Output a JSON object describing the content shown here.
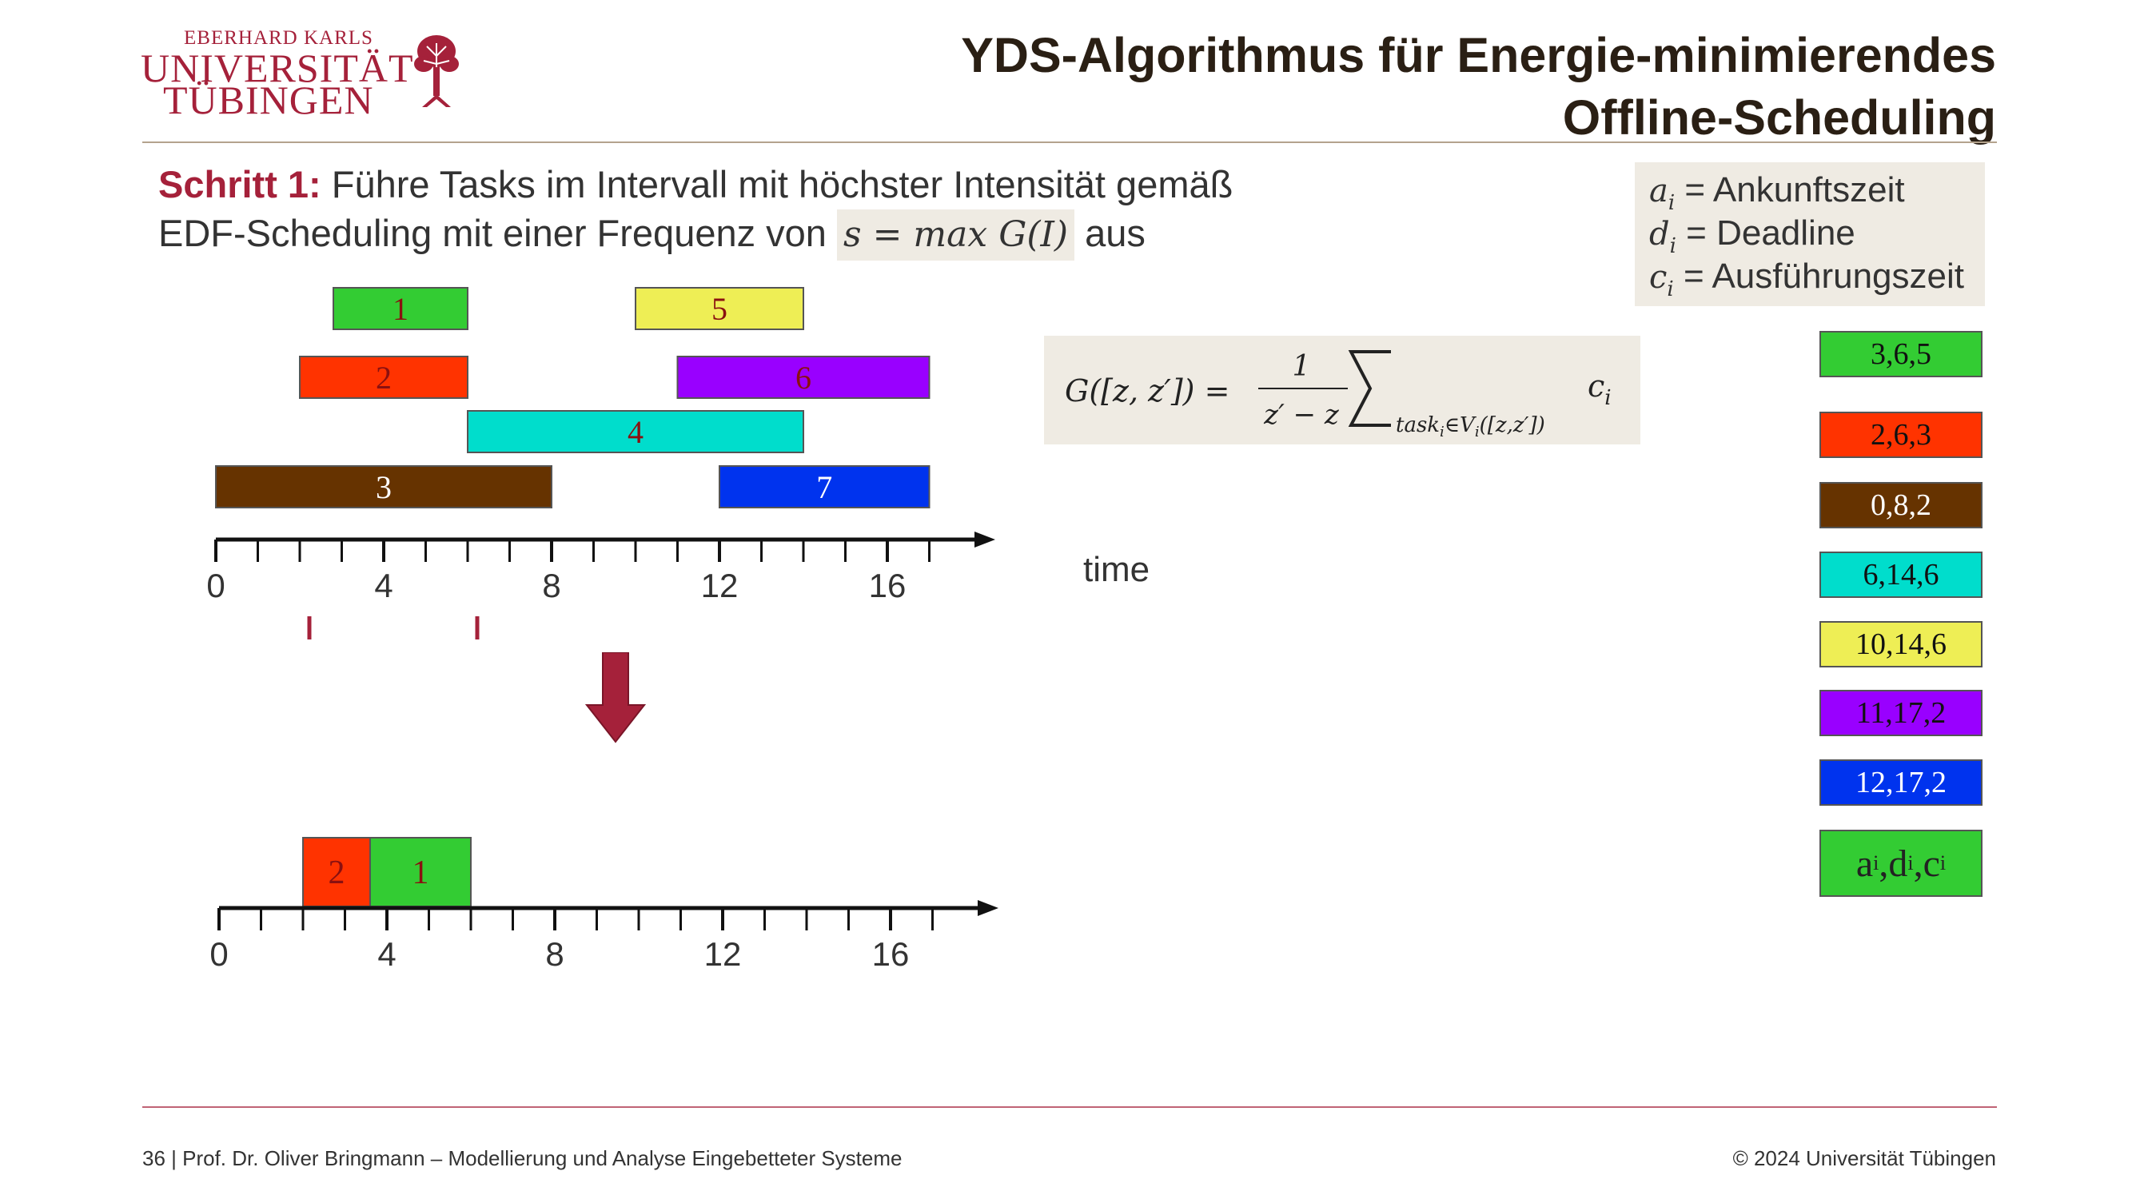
{
  "logo": {
    "line1": "EBERHARD KARLS",
    "line2": "UNIVERSITÄT",
    "line3": "TÜBINGEN"
  },
  "title": {
    "line1": "YDS-Algorithmus für Energie-minimierendes",
    "line2": "Offline-Scheduling"
  },
  "step": {
    "label": "Schritt 1:",
    "text1": "Führe Tasks im Intervall mit höchster Intensität gemäß",
    "text2": "EDF-Scheduling mit einer Frequenz von",
    "formula": "s = max G(I)",
    "text3": "aus"
  },
  "legend": [
    {
      "symbol": "a",
      "sub": "i",
      "text": "= Ankunftszeit"
    },
    {
      "symbol": "d",
      "sub": "i",
      "text": "= Deadline"
    },
    {
      "symbol": "c",
      "sub": "i",
      "text": "= Ausführungszeit"
    }
  ],
  "g_formula": {
    "lhs": "G([z, z′]) =",
    "numerator": "1",
    "denominator": "z′ − z",
    "sum_sub": "task",
    "sum_sub_i": "i",
    "sum_sub_rest": "∈V",
    "sum_sub_v_i": "i",
    "sum_sub_tail": "([z,z′])",
    "term": "c",
    "term_sub": "i"
  },
  "schedule_top": {
    "tasks": [
      {
        "label": "1",
        "start": 2.8,
        "end": 6.0,
        "row": 0,
        "color": "#33cc33"
      },
      {
        "label": "5",
        "start": 10.0,
        "end": 14.0,
        "row": 0,
        "color": "#eeee55"
      },
      {
        "label": "2",
        "start": 2.0,
        "end": 6.0,
        "row": 1,
        "color": "#ff3300"
      },
      {
        "label": "6",
        "start": 11.0,
        "end": 17.0,
        "row": 1,
        "color": "#9900ff"
      },
      {
        "label": "4",
        "start": 6.0,
        "end": 14.0,
        "row": 2,
        "color": "#00ddcc"
      },
      {
        "label": "3",
        "start": 0.0,
        "end": 8.0,
        "row": 3,
        "color": "#663300"
      },
      {
        "label": "7",
        "start": 12.0,
        "end": 17.0,
        "row": 3,
        "color": "#0033ee"
      }
    ],
    "ticks": [
      "0",
      "4",
      "8",
      "12",
      "16"
    ],
    "axis_label": "time",
    "highlight_interval": [
      2,
      6
    ]
  },
  "schedule_bottom": {
    "tasks": [
      {
        "label": "2",
        "start": 2.0,
        "end": 3.6,
        "color": "#ff3300"
      },
      {
        "label": "1",
        "start": 3.6,
        "end": 6.0,
        "color": "#33cc33"
      }
    ],
    "ticks": [
      "0",
      "4",
      "8",
      "12",
      "16"
    ]
  },
  "task_boxes": [
    {
      "text": "3,6,5",
      "color": "#33cc33",
      "text_color": "#111111"
    },
    {
      "text": "2,6,3",
      "color": "#ff3300",
      "text_color": "#111111"
    },
    {
      "text": "0,8,2",
      "color": "#663300",
      "text_color": "#ffffff"
    },
    {
      "text": "6,14,6",
      "color": "#00ddcc",
      "text_color": "#111111"
    },
    {
      "text": "10,14,6",
      "color": "#eeee55",
      "text_color": "#111111"
    },
    {
      "text": "11,17,2",
      "color": "#9900ff",
      "text_color": "#111111"
    },
    {
      "text": "12,17,2",
      "color": "#0033ee",
      "text_color": "#ffffff"
    }
  ],
  "task_box_key": {
    "a": "a",
    "d": "d",
    "c": "c",
    "sub": "i",
    "color": "#33cc33"
  },
  "footer": {
    "left": "36 | Prof. Dr. Oliver Bringmann – Modellierung und Analyse Eingebetteter Systeme",
    "right": "© 2024 Universität Tübingen"
  },
  "colors": {
    "accent": "#a5213a",
    "box_bg": "#efebe3"
  }
}
